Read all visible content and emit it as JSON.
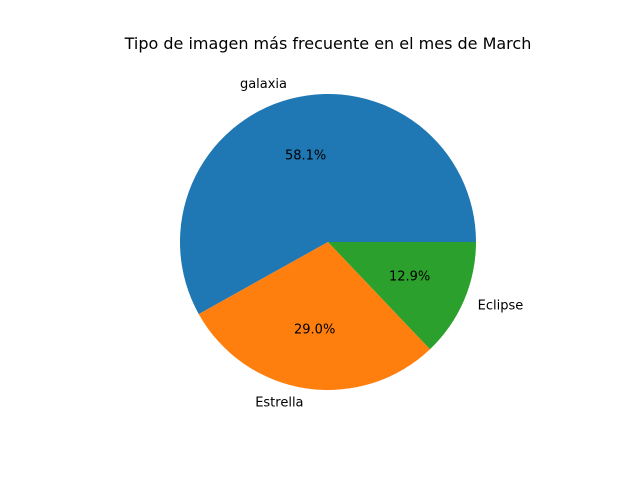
{
  "chart_data": {
    "type": "pie",
    "title": "Tipo de imagen más frecuente en el mes de March",
    "slices": [
      {
        "label": "galaxia",
        "value": 58.1,
        "pct_label": "58.1%",
        "color": "#1f77b4"
      },
      {
        "label": "Estrella",
        "value": 29.0,
        "pct_label": "29.0%",
        "color": "#ff7f0e"
      },
      {
        "label": "Eclipse",
        "value": 12.9,
        "pct_label": "12.9%",
        "color": "#2ca02c"
      }
    ],
    "start_angle_deg": 0,
    "direction": "counterclockwise",
    "grid": false,
    "legend": "none"
  }
}
